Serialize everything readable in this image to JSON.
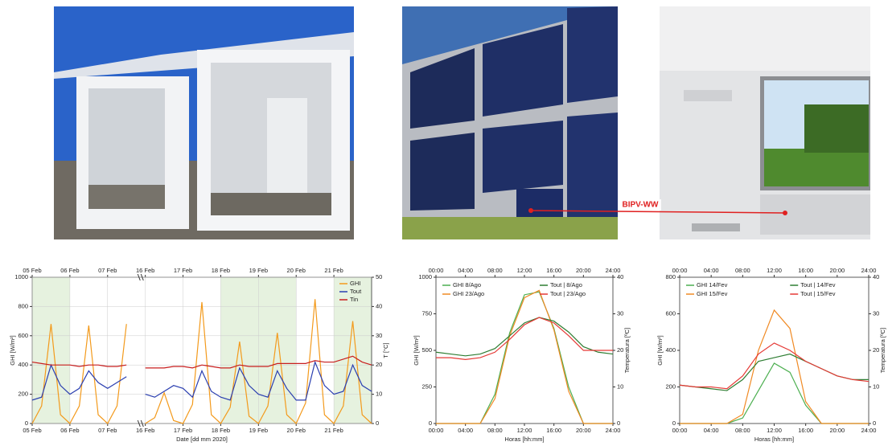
{
  "photos": {
    "label": "BIPV-WW"
  },
  "chart_data": [
    {
      "type": "line",
      "grid": true,
      "legend": "upper right",
      "legend_columns": 1,
      "shaded": [
        [
          0,
          1
        ],
        [
          5,
          7
        ],
        [
          8,
          9
        ]
      ],
      "xlabel": "Date [dd mm 2020]",
      "ylabel": "GHI [W/m²]",
      "y2label": "T [°C]",
      "x": [
        0,
        0.25,
        0.5,
        0.75,
        1,
        1.25,
        1.5,
        1.75,
        2,
        2.25,
        2.5,
        2.75,
        3,
        3.25,
        3.5,
        3.75,
        4,
        4.25,
        4.5,
        4.75,
        5,
        5.25,
        5.5,
        5.75,
        6,
        6.25,
        6.5,
        6.75,
        7,
        7.25,
        7.5,
        7.75,
        8,
        8.25,
        8.5,
        8.75,
        9
      ],
      "xlim": [
        0,
        9
      ],
      "xticks": [
        {
          "value": 0,
          "label": "05 Feb"
        },
        {
          "value": 1,
          "label": "06 Feb"
        },
        {
          "value": 2,
          "label": "07 Feb"
        },
        {
          "value": 3,
          "label": "16 Feb"
        },
        {
          "value": 4,
          "label": "17 Feb"
        },
        {
          "value": 5,
          "label": "18 Feb"
        },
        {
          "value": 6,
          "label": "19 Feb"
        },
        {
          "value": 7,
          "label": "20 Feb"
        },
        {
          "value": 8,
          "label": "21 Feb"
        }
      ],
      "ylim": [
        0,
        1000
      ],
      "yticks": [
        0,
        200,
        400,
        600,
        800,
        1000
      ],
      "y2lim": [
        0,
        50
      ],
      "y2ticks": [
        0,
        10,
        20,
        30,
        40,
        50
      ],
      "series": [
        {
          "name": "GHI",
          "color": "#f39a1c",
          "values": [
            0,
            120,
            680,
            60,
            0,
            120,
            670,
            60,
            0,
            120,
            680,
            null,
            0,
            40,
            210,
            20,
            0,
            130,
            830,
            60,
            0,
            110,
            560,
            50,
            0,
            120,
            620,
            60,
            0,
            140,
            850,
            60,
            0,
            120,
            700,
            60,
            0
          ]
        },
        {
          "name": "Tout",
          "color": "#2b3fb0",
          "axis": "y2",
          "values": [
            8,
            9,
            20,
            13,
            10,
            12,
            18,
            14,
            12,
            14,
            16,
            null,
            10,
            9,
            11,
            13,
            12,
            9,
            18,
            11,
            9,
            8,
            19,
            13,
            10,
            9,
            18,
            12,
            8,
            8,
            21,
            13,
            10,
            11,
            20,
            13,
            11
          ]
        },
        {
          "name": "Tin",
          "color": "#c81e1e",
          "axis": "y2",
          "values": [
            21,
            20.5,
            20,
            20,
            20,
            19.5,
            20,
            20,
            19.5,
            19.5,
            20,
            null,
            19,
            19,
            19,
            19.5,
            19.5,
            19,
            20,
            19.5,
            19,
            19,
            20,
            19.5,
            19.5,
            19.5,
            20.5,
            20.5,
            20.5,
            20.5,
            21.5,
            21,
            21,
            22,
            23,
            21,
            20
          ]
        }
      ]
    },
    {
      "type": "line",
      "grid": false,
      "legend": "top",
      "legend_columns": 2,
      "xlabel": "Horas [hh:mm]",
      "ylabel": "GHI [W/m²]",
      "y2label": "Temperatura [ºC]",
      "x": [
        0,
        2,
        4,
        6,
        8,
        10,
        12,
        14,
        16,
        18,
        20,
        22,
        24
      ],
      "xlim": [
        0,
        24
      ],
      "xticks": [
        {
          "value": 0,
          "label": "00:00"
        },
        {
          "value": 4,
          "label": "04:00"
        },
        {
          "value": 8,
          "label": "08:00"
        },
        {
          "value": 12,
          "label": "12:00"
        },
        {
          "value": 16,
          "label": "16:00"
        },
        {
          "value": 20,
          "label": "20:00"
        },
        {
          "value": 24,
          "label": "24:00"
        }
      ],
      "ylim": [
        0,
        1000
      ],
      "yticks": [
        0,
        250,
        500,
        750,
        1000
      ],
      "y2lim": [
        0,
        40
      ],
      "y2ticks": [
        0,
        10,
        20,
        30,
        40
      ],
      "series": [
        {
          "name": "GHI 8/Ago",
          "color": "#4caf50",
          "values": [
            0,
            0,
            0,
            0,
            200,
            620,
            880,
            900,
            650,
            250,
            0,
            0,
            0
          ]
        },
        {
          "name": "GHI 23/Ago",
          "color": "#f08a24",
          "values": [
            0,
            0,
            0,
            0,
            170,
            600,
            860,
            910,
            640,
            220,
            0,
            0,
            0
          ]
        },
        {
          "name": "Tout | 8/Ago",
          "color": "#2e7d32",
          "axis": "y2",
          "values": [
            19.5,
            19,
            18.5,
            19,
            20.5,
            24,
            27.5,
            29,
            28,
            25,
            21,
            19.5,
            19
          ]
        },
        {
          "name": "Tout | 23/Ago",
          "color": "#e53935",
          "axis": "y2",
          "values": [
            18,
            18,
            17.5,
            18,
            19.5,
            23,
            27,
            29,
            27.5,
            24,
            20,
            20,
            20
          ]
        }
      ]
    },
    {
      "type": "line",
      "grid": false,
      "legend": "top",
      "legend_columns": 2,
      "xlabel": "Horas [hh:mm]",
      "ylabel": "GHI [W/m²]",
      "y2label": "Temperatura [ºC]",
      "x": [
        0,
        2,
        4,
        6,
        8,
        10,
        12,
        14,
        16,
        18,
        20,
        22,
        24
      ],
      "xlim": [
        0,
        24
      ],
      "xticks": [
        {
          "value": 0,
          "label": "00:00"
        },
        {
          "value": 4,
          "label": "04:00"
        },
        {
          "value": 8,
          "label": "08:00"
        },
        {
          "value": 12,
          "label": "12:00"
        },
        {
          "value": 16,
          "label": "16:00"
        },
        {
          "value": 20,
          "label": "20:00"
        },
        {
          "value": 24,
          "label": "24:00"
        }
      ],
      "ylim": [
        0,
        800
      ],
      "yticks": [
        0,
        200,
        400,
        600,
        800
      ],
      "y2lim": [
        0,
        40
      ],
      "y2ticks": [
        0,
        10,
        20,
        30,
        40
      ],
      "series": [
        {
          "name": "GHI 14/Fev",
          "color": "#4caf50",
          "values": [
            0,
            0,
            0,
            0,
            30,
            180,
            330,
            280,
            100,
            0,
            0,
            0,
            0
          ]
        },
        {
          "name": "GHI 15/Fev",
          "color": "#f08a24",
          "values": [
            0,
            0,
            0,
            0,
            50,
            400,
            620,
            520,
            120,
            0,
            0,
            0,
            0
          ]
        },
        {
          "name": "Tout | 14/Fev",
          "color": "#2e7d32",
          "axis": "y2",
          "values": [
            10.5,
            10,
            9.5,
            9,
            12,
            17,
            18,
            19,
            17,
            15,
            13,
            12,
            12
          ]
        },
        {
          "name": "Tout | 15/Fev",
          "color": "#e53935",
          "axis": "y2",
          "values": [
            10.5,
            10,
            10,
            9.5,
            13,
            19,
            22,
            20,
            17,
            15,
            13,
            12,
            11.5
          ]
        }
      ]
    }
  ]
}
